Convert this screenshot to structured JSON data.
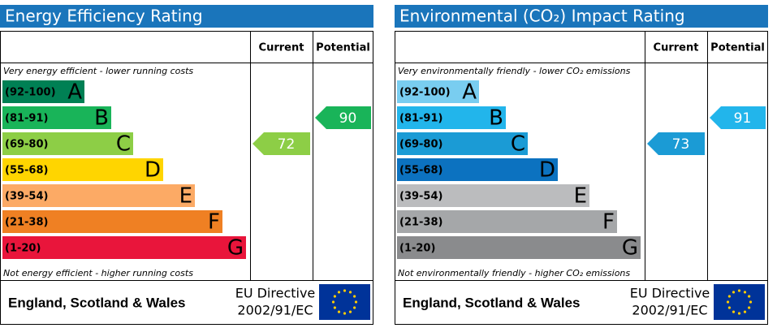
{
  "chart_data": [
    {
      "type": "rating",
      "title": "Energy Efficiency Rating",
      "columns": [
        "Current",
        "Potential"
      ],
      "top_note": "Very energy efficient - lower running costs",
      "bottom_note": "Not energy efficient - higher running costs",
      "bands": [
        {
          "range": "(92-100)",
          "letter": "A",
          "color": "#008054"
        },
        {
          "range": "(81-91)",
          "letter": "B",
          "color": "#19b459"
        },
        {
          "range": "(69-80)",
          "letter": "C",
          "color": "#8dce46"
        },
        {
          "range": "(55-68)",
          "letter": "D",
          "color": "#ffd500"
        },
        {
          "range": "(39-54)",
          "letter": "E",
          "color": "#fcaa65"
        },
        {
          "range": "(21-38)",
          "letter": "F",
          "color": "#ef8023"
        },
        {
          "range": "(1-20)",
          "letter": "G",
          "color": "#e9153b"
        }
      ],
      "current": 72,
      "potential": 90,
      "footer": {
        "region": "England, Scotland & Wales",
        "directive": "EU Directive",
        "code": "2002/91/EC"
      }
    },
    {
      "type": "rating",
      "title": "Environmental (CO₂) Impact Rating",
      "columns": [
        "Current",
        "Potential"
      ],
      "top_note": "Very environmentally friendly - lower CO₂ emissions",
      "bottom_note": "Not environmentally friendly - higher CO₂ emissions",
      "bands": [
        {
          "range": "(92-100)",
          "letter": "A",
          "color": "#79cdf0"
        },
        {
          "range": "(81-91)",
          "letter": "B",
          "color": "#22b5eb"
        },
        {
          "range": "(69-80)",
          "letter": "C",
          "color": "#1b9bd5"
        },
        {
          "range": "(55-68)",
          "letter": "D",
          "color": "#0c72c0"
        },
        {
          "range": "(39-54)",
          "letter": "E",
          "color": "#bbbcbe"
        },
        {
          "range": "(21-38)",
          "letter": "F",
          "color": "#a5a7a9"
        },
        {
          "range": "(1-20)",
          "letter": "G",
          "color": "#8a8b8d"
        }
      ],
      "current": 73,
      "potential": 91,
      "footer": {
        "region": "England, Scotland & Wales",
        "directive": "EU Directive",
        "code": "2002/91/EC"
      }
    }
  ]
}
